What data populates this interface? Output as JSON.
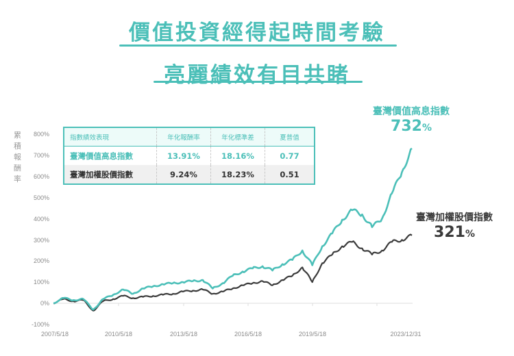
{
  "header": {
    "title_line1": "價值投資經得起時間考驗",
    "title_line2": "亮麗績效有目共睹"
  },
  "table": {
    "headers": [
      "指數績效表現",
      "年化報酬率",
      "年化標準差",
      "夏普值"
    ],
    "rows": [
      {
        "name": "臺灣價值高息指數",
        "return": "13.91%",
        "std": "18.16%",
        "sharpe": "0.77"
      },
      {
        "name": "臺灣加權股價指數",
        "return": "9.24%",
        "std": "18.23%",
        "sharpe": "0.51"
      }
    ]
  },
  "annotations": {
    "series1": {
      "name": "臺灣價值高息指數",
      "value": "732",
      "unit": "%"
    },
    "series2": {
      "name": "臺灣加權股價指數",
      "value": "321",
      "unit": "%"
    }
  },
  "colors": {
    "series1": "#4bbfb8",
    "series2": "#3a3a3a",
    "accent": "#4bbfb8"
  },
  "chart_data": {
    "type": "line",
    "title": "價值投資經得起時間考驗 亮麗績效有目共睹",
    "xlabel": "",
    "ylabel": "累積報酬率",
    "ylim": [
      -100,
      800
    ],
    "yticks": [
      "800%",
      "700%",
      "600%",
      "500%",
      "400%",
      "300%",
      "200%",
      "100%",
      "0%",
      "-100%"
    ],
    "xticks": [
      "2007/5/18",
      "2010/5/18",
      "2013/5/18",
      "2016/5/18",
      "2019/5/18",
      "2023/12/31"
    ],
    "grid": false,
    "legend": "annotations at line ends",
    "x": [
      "2007/5",
      "2008/1",
      "2008/6",
      "2009/1",
      "2009/6",
      "2010/1",
      "2010/6",
      "2011/1",
      "2011/8",
      "2012/1",
      "2012/6",
      "2013/1",
      "2013/6",
      "2014/1",
      "2014/6",
      "2015/1",
      "2015/8",
      "2016/1",
      "2016/6",
      "2017/1",
      "2017/6",
      "2018/1",
      "2018/10",
      "2019/1",
      "2019/6",
      "2020/1",
      "2020/3",
      "2020/6",
      "2021/1",
      "2021/6",
      "2022/1",
      "2022/6",
      "2022/10",
      "2023/1",
      "2023/6",
      "2023/10",
      "2023/12"
    ],
    "series": [
      {
        "name": "臺灣價值高息指數",
        "values": [
          0,
          25,
          15,
          20,
          -30,
          20,
          40,
          65,
          45,
          70,
          80,
          90,
          95,
          100,
          105,
          110,
          70,
          95,
          130,
          150,
          165,
          175,
          155,
          185,
          205,
          250,
          180,
          270,
          330,
          395,
          440,
          420,
          360,
          400,
          520,
          620,
          732
        ]
      },
      {
        "name": "臺灣加權股價指數",
        "values": [
          0,
          20,
          10,
          15,
          -35,
          10,
          20,
          35,
          25,
          30,
          35,
          40,
          45,
          55,
          60,
          65,
          45,
          55,
          70,
          85,
          95,
          105,
          85,
          110,
          130,
          170,
          100,
          190,
          230,
          270,
          290,
          260,
          230,
          250,
          290,
          300,
          321
        ]
      }
    ],
    "annotations": [
      "臺灣價值高息指數 732%",
      "臺灣加權股價指數 321%"
    ]
  }
}
